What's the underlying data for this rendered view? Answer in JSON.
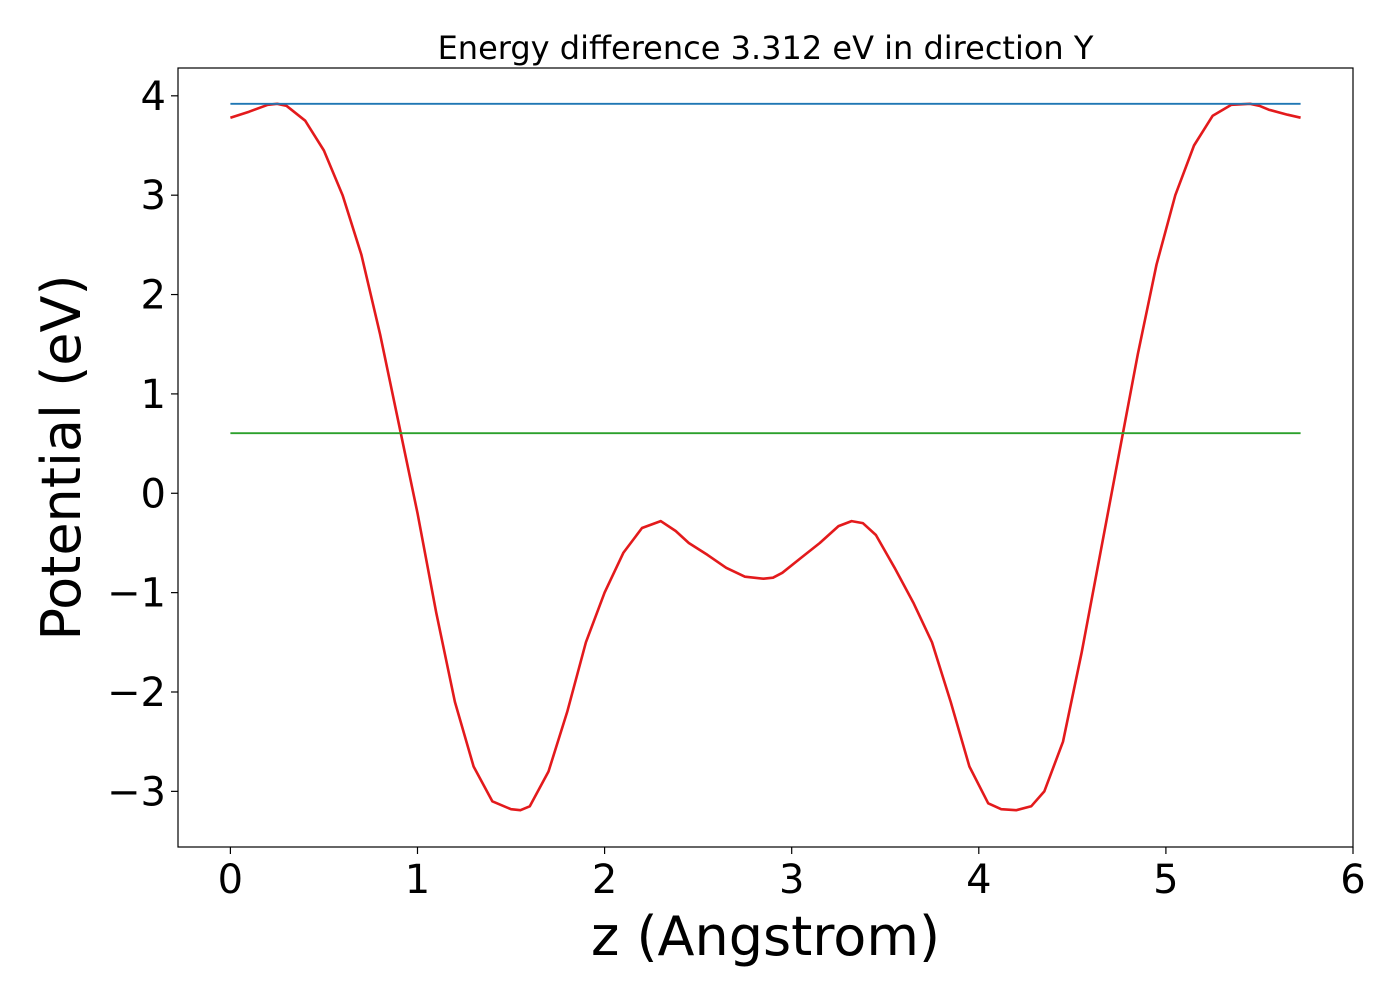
{
  "chart_data": {
    "type": "line",
    "title": "Energy difference 3.312 eV in direction Y",
    "xlabel": "z (Angstrom)",
    "ylabel": "Potential (eV)",
    "xlim": [
      -0.28,
      6.0
    ],
    "ylim": [
      -3.56,
      4.28
    ],
    "xticks": [
      0,
      1,
      2,
      3,
      4,
      5,
      6
    ],
    "xtick_labels": [
      "0",
      "1",
      "2",
      "3",
      "4",
      "5",
      "6"
    ],
    "yticks": [
      4,
      3,
      2,
      1,
      0,
      -1,
      -2,
      -3
    ],
    "ytick_labels": [
      "4",
      "3",
      "2",
      "1",
      "0",
      "−1",
      "−2",
      "−3"
    ],
    "grid": false,
    "legend": "none",
    "series": [
      {
        "color": "#e31a1c",
        "x": [
          0.0,
          0.1,
          0.2,
          0.25,
          0.3,
          0.4,
          0.5,
          0.6,
          0.7,
          0.8,
          0.9,
          1.0,
          1.1,
          1.2,
          1.3,
          1.4,
          1.5,
          1.55,
          1.6,
          1.7,
          1.8,
          1.9,
          2.0,
          2.1,
          2.2,
          2.3,
          2.38,
          2.45,
          2.55,
          2.65,
          2.75,
          2.85,
          2.9,
          2.95,
          3.05,
          3.15,
          3.25,
          3.32,
          3.38,
          3.45,
          3.55,
          3.65,
          3.75,
          3.85,
          3.95,
          4.05,
          4.12,
          4.2,
          4.28,
          4.35,
          4.45,
          4.55,
          4.65,
          4.75,
          4.85,
          4.95,
          5.05,
          5.15,
          5.25,
          5.35,
          5.45,
          5.5,
          5.55,
          5.65,
          5.72
        ],
        "y": [
          3.78,
          3.84,
          3.91,
          3.92,
          3.9,
          3.75,
          3.45,
          3.0,
          2.4,
          1.6,
          0.7,
          -0.2,
          -1.2,
          -2.1,
          -2.75,
          -3.1,
          -3.18,
          -3.19,
          -3.15,
          -2.8,
          -2.2,
          -1.5,
          -1.0,
          -0.6,
          -0.35,
          -0.28,
          -0.38,
          -0.5,
          -0.62,
          -0.75,
          -0.84,
          -0.86,
          -0.85,
          -0.8,
          -0.65,
          -0.5,
          -0.33,
          -0.28,
          -0.3,
          -0.42,
          -0.75,
          -1.1,
          -1.5,
          -2.1,
          -2.75,
          -3.12,
          -3.18,
          -3.19,
          -3.15,
          -3.0,
          -2.5,
          -1.6,
          -0.6,
          0.4,
          1.4,
          2.3,
          3.0,
          3.5,
          3.8,
          3.91,
          3.92,
          3.9,
          3.86,
          3.81,
          3.78
        ]
      },
      {
        "color": "#1f77b4",
        "x": [
          0.0,
          5.72
        ],
        "y": [
          3.92,
          3.92
        ]
      },
      {
        "color": "#2ca02c",
        "x": [
          0.0,
          5.72
        ],
        "y": [
          0.605,
          0.605
        ]
      }
    ]
  }
}
